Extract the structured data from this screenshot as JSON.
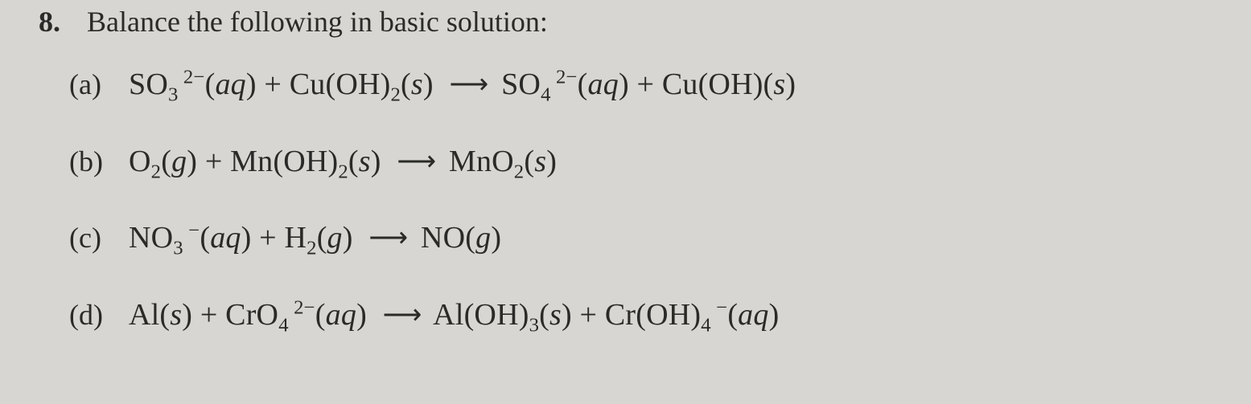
{
  "background_color": "#d8d6d2",
  "text_color": "#2a2a28",
  "font_family": "Times New Roman",
  "question": {
    "number": "8.",
    "prompt": "Balance the following in basic solution:"
  },
  "arrow_glyph": "⟶",
  "parts": {
    "a": {
      "label": "(a)"
    },
    "b": {
      "label": "(b)"
    },
    "c": {
      "label": "(c)"
    },
    "d": {
      "label": "(d)"
    }
  },
  "equations": {
    "a": {
      "lhs": [
        {
          "formula": "SO3",
          "charge": "2−",
          "state": "aq"
        },
        {
          "formula": "Cu(OH)2",
          "state": "s"
        }
      ],
      "rhs": [
        {
          "formula": "SO4",
          "charge": "2−",
          "state": "aq"
        },
        {
          "formula": "Cu(OH)",
          "state": "s"
        }
      ]
    },
    "b": {
      "lhs": [
        {
          "formula": "O2",
          "state": "g"
        },
        {
          "formula": "Mn(OH)2",
          "state": "s"
        }
      ],
      "rhs": [
        {
          "formula": "MnO2",
          "state": "s"
        }
      ]
    },
    "c": {
      "lhs": [
        {
          "formula": "NO3",
          "charge": "−",
          "state": "aq"
        },
        {
          "formula": "H2",
          "state": "g"
        }
      ],
      "rhs": [
        {
          "formula": "NO",
          "state": "g"
        }
      ]
    },
    "d": {
      "lhs": [
        {
          "formula": "Al",
          "state": "s"
        },
        {
          "formula": "CrO4",
          "charge": "2−",
          "state": "aq"
        }
      ],
      "rhs": [
        {
          "formula": "Al(OH)3",
          "state": "s"
        },
        {
          "formula": "Cr(OH)4",
          "charge": "−",
          "state": "aq"
        }
      ]
    }
  }
}
